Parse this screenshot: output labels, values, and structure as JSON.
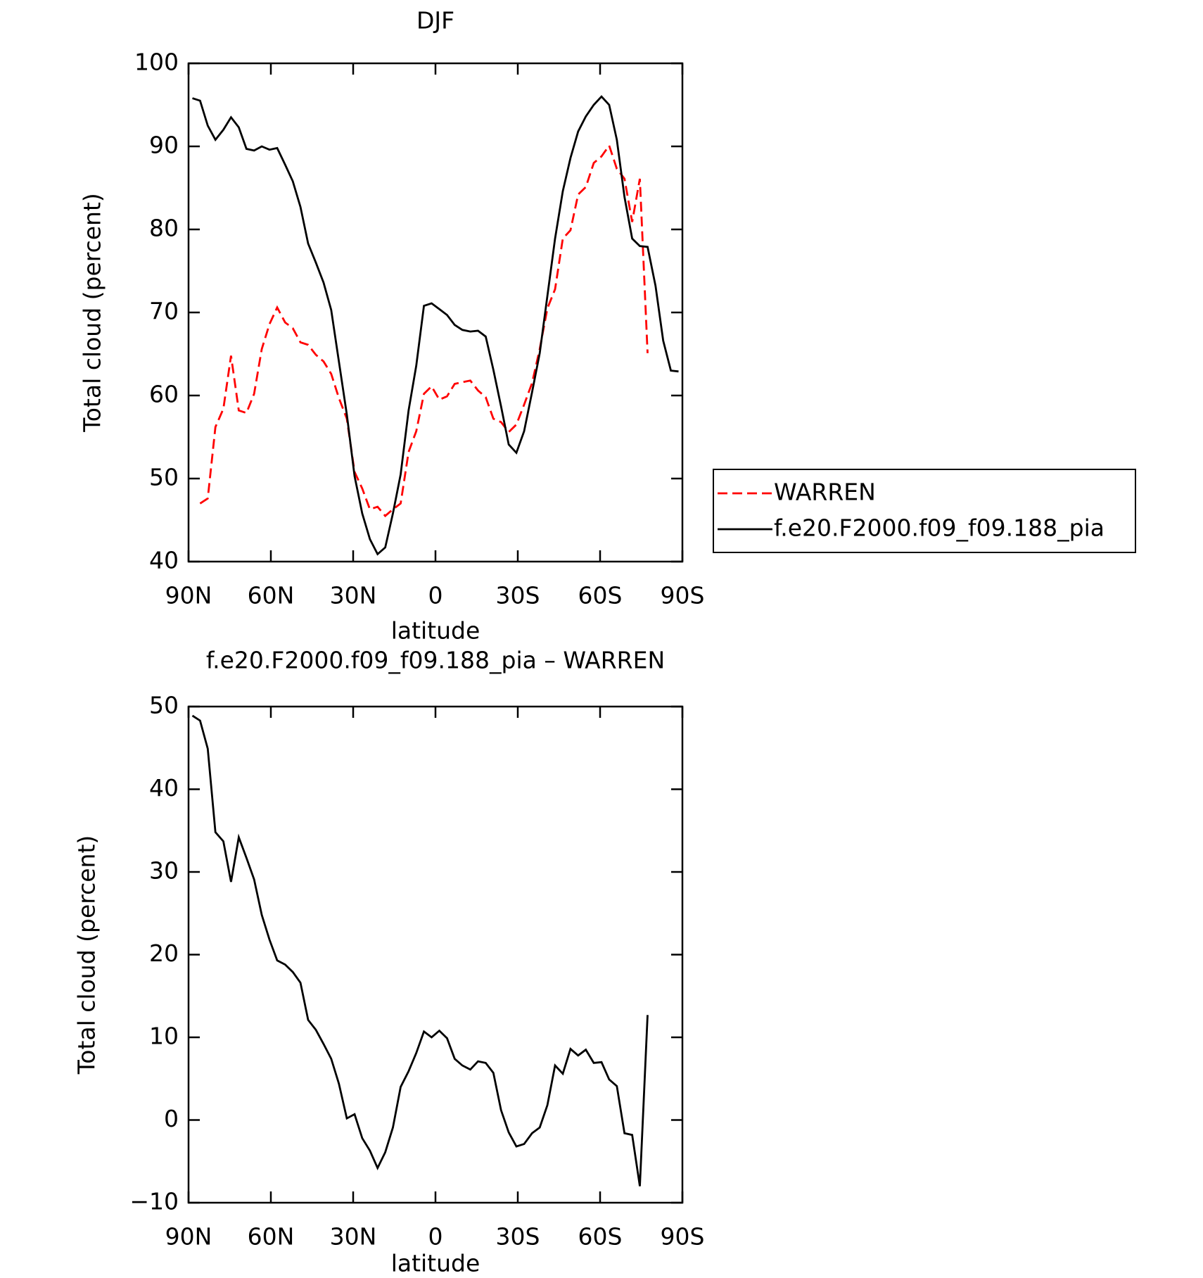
{
  "chart_data": [
    {
      "type": "line",
      "title": "DJF",
      "xlabel": "latitude",
      "ylabel": "Total cloud (percent)",
      "x": [
        88.6,
        85.8,
        83.0,
        80.2,
        77.3,
        74.5,
        71.7,
        68.9,
        66.1,
        63.3,
        60.5,
        57.7,
        54.8,
        52.0,
        49.2,
        46.4,
        43.6,
        40.8,
        38.0,
        35.2,
        32.3,
        29.5,
        26.7,
        23.9,
        21.1,
        18.3,
        15.5,
        12.7,
        9.8,
        7.0,
        4.2,
        1.4,
        -1.4,
        -4.2,
        -7.0,
        -9.8,
        -12.7,
        -15.5,
        -18.3,
        -21.1,
        -23.9,
        -26.7,
        -29.5,
        -32.3,
        -35.2,
        -38.0,
        -40.8,
        -43.6,
        -46.4,
        -49.2,
        -52.0,
        -54.8,
        -57.7,
        -60.5,
        -63.3,
        -66.1,
        -68.9,
        -71.7,
        -74.5,
        -77.3,
        -80.2,
        -83.0,
        -85.8,
        -88.6
      ],
      "series": [
        {
          "name": "WARREN",
          "color": "#ff0000",
          "dashed": true,
          "values": [
            null,
            47.0,
            47.6,
            56.2,
            58.4,
            64.8,
            58.2,
            57.9,
            60.2,
            65.6,
            68.6,
            70.6,
            68.8,
            68.1,
            66.4,
            66.1,
            64.9,
            64.1,
            62.6,
            59.7,
            57.2,
            50.8,
            48.8,
            46.3,
            46.6,
            45.5,
            46.3,
            47.0,
            53.2,
            55.7,
            60.2,
            61.1,
            59.5,
            59.9,
            61.4,
            61.6,
            61.8,
            60.6,
            59.8,
            57.2,
            56.8,
            55.6,
            56.5,
            58.9,
            61.5,
            65.6,
            70.5,
            72.8,
            78.9,
            79.9,
            84.2,
            85.1,
            88.0,
            88.8,
            90.1,
            87.3,
            86.1,
            80.9,
            86.1,
            65.1,
            null,
            null,
            null,
            null
          ]
        },
        {
          "name": "f.e20.F2000.f09_f09.188_pia",
          "color": "#000000",
          "dashed": false,
          "values": [
            95.8,
            95.5,
            92.5,
            90.8,
            92.0,
            93.5,
            92.3,
            89.7,
            89.5,
            90.0,
            89.6,
            89.8,
            87.8,
            85.8,
            82.7,
            78.3,
            76.0,
            73.6,
            70.3,
            64.1,
            57.7,
            50.3,
            45.8,
            42.7,
            40.9,
            41.7,
            45.8,
            50.5,
            58.2,
            63.6,
            70.8,
            71.1,
            70.4,
            69.7,
            68.5,
            67.9,
            67.7,
            67.8,
            67.1,
            63.1,
            58.7,
            54.1,
            53.1,
            55.7,
            60.4,
            65.1,
            72.0,
            78.9,
            84.6,
            88.6,
            91.8,
            93.6,
            95.0,
            96.0,
            95.0,
            90.8,
            83.9,
            78.9,
            78.0,
            77.9,
            73.2,
            66.6,
            63.0,
            62.9
          ]
        }
      ],
      "xlim": [
        90,
        -90
      ],
      "xticks": [
        {
          "value": 90,
          "label": "90N"
        },
        {
          "value": 60,
          "label": "60N"
        },
        {
          "value": 30,
          "label": "30N"
        },
        0,
        {
          "value": -30,
          "label": "30S"
        },
        {
          "value": -60,
          "label": "60S"
        },
        {
          "value": -90,
          "label": "90S"
        }
      ],
      "ylim": [
        40,
        100
      ],
      "yticks": [
        40,
        50,
        60,
        70,
        80,
        90,
        100
      ],
      "legend": "right"
    },
    {
      "type": "line",
      "title": "f.e20.F2000.f09_f09.188_pia – WARREN",
      "xlabel": "latitude",
      "ylabel": "Total cloud (percent)",
      "x": [
        88.6,
        85.8,
        83.0,
        80.2,
        77.3,
        74.5,
        71.7,
        68.9,
        66.1,
        63.3,
        60.5,
        57.7,
        54.8,
        52.0,
        49.2,
        46.4,
        43.6,
        40.8,
        38.0,
        35.2,
        32.3,
        29.5,
        26.7,
        23.9,
        21.1,
        18.3,
        15.5,
        12.7,
        9.8,
        7.0,
        4.2,
        1.4,
        -1.4,
        -4.2,
        -7.0,
        -9.8,
        -12.7,
        -15.5,
        -18.3,
        -21.1,
        -23.9,
        -26.7,
        -29.5,
        -32.3,
        -35.2,
        -38.0,
        -40.8,
        -43.6,
        -46.4,
        -49.2,
        -52.0,
        -54.8,
        -57.7,
        -60.5,
        -63.3,
        -66.1,
        -68.9,
        -71.7,
        -74.5,
        -77.3,
        -80.2,
        -83.0,
        -85.8,
        -88.6
      ],
      "series": [
        {
          "color": "#000000",
          "dashed": false,
          "values": [
            48.9,
            48.3,
            44.9,
            34.8,
            33.7,
            28.8,
            34.2,
            31.7,
            29.1,
            24.8,
            21.8,
            19.3,
            18.8,
            17.9,
            16.6,
            12.1,
            10.9,
            9.2,
            7.4,
            4.4,
            0.2,
            0.7,
            -2.2,
            -3.7,
            -5.8,
            -3.9,
            -0.9,
            4.0,
            5.9,
            8.1,
            10.7,
            10.0,
            10.8,
            9.9,
            7.4,
            6.6,
            6.1,
            7.1,
            6.9,
            5.7,
            1.2,
            -1.5,
            -3.2,
            -2.9,
            -1.6,
            -0.9,
            1.8,
            6.6,
            5.6,
            8.6,
            7.8,
            8.5,
            6.9,
            7.0,
            4.9,
            4.1,
            -1.6,
            -1.8,
            -8.0,
            12.7,
            null,
            null,
            null,
            null
          ]
        }
      ],
      "xlim": [
        90,
        -90
      ],
      "xticks": [
        {
          "value": 90,
          "label": "90N"
        },
        {
          "value": 60,
          "label": "60N"
        },
        {
          "value": 30,
          "label": "30N"
        },
        0,
        {
          "value": -30,
          "label": "30S"
        },
        {
          "value": -60,
          "label": "60S"
        },
        {
          "value": -90,
          "label": "90S"
        }
      ],
      "ylim": [
        -10,
        50
      ],
      "yticks": [
        {
          "value": -10,
          "label": "−10"
        },
        0,
        10,
        20,
        30,
        40,
        50
      ]
    }
  ]
}
